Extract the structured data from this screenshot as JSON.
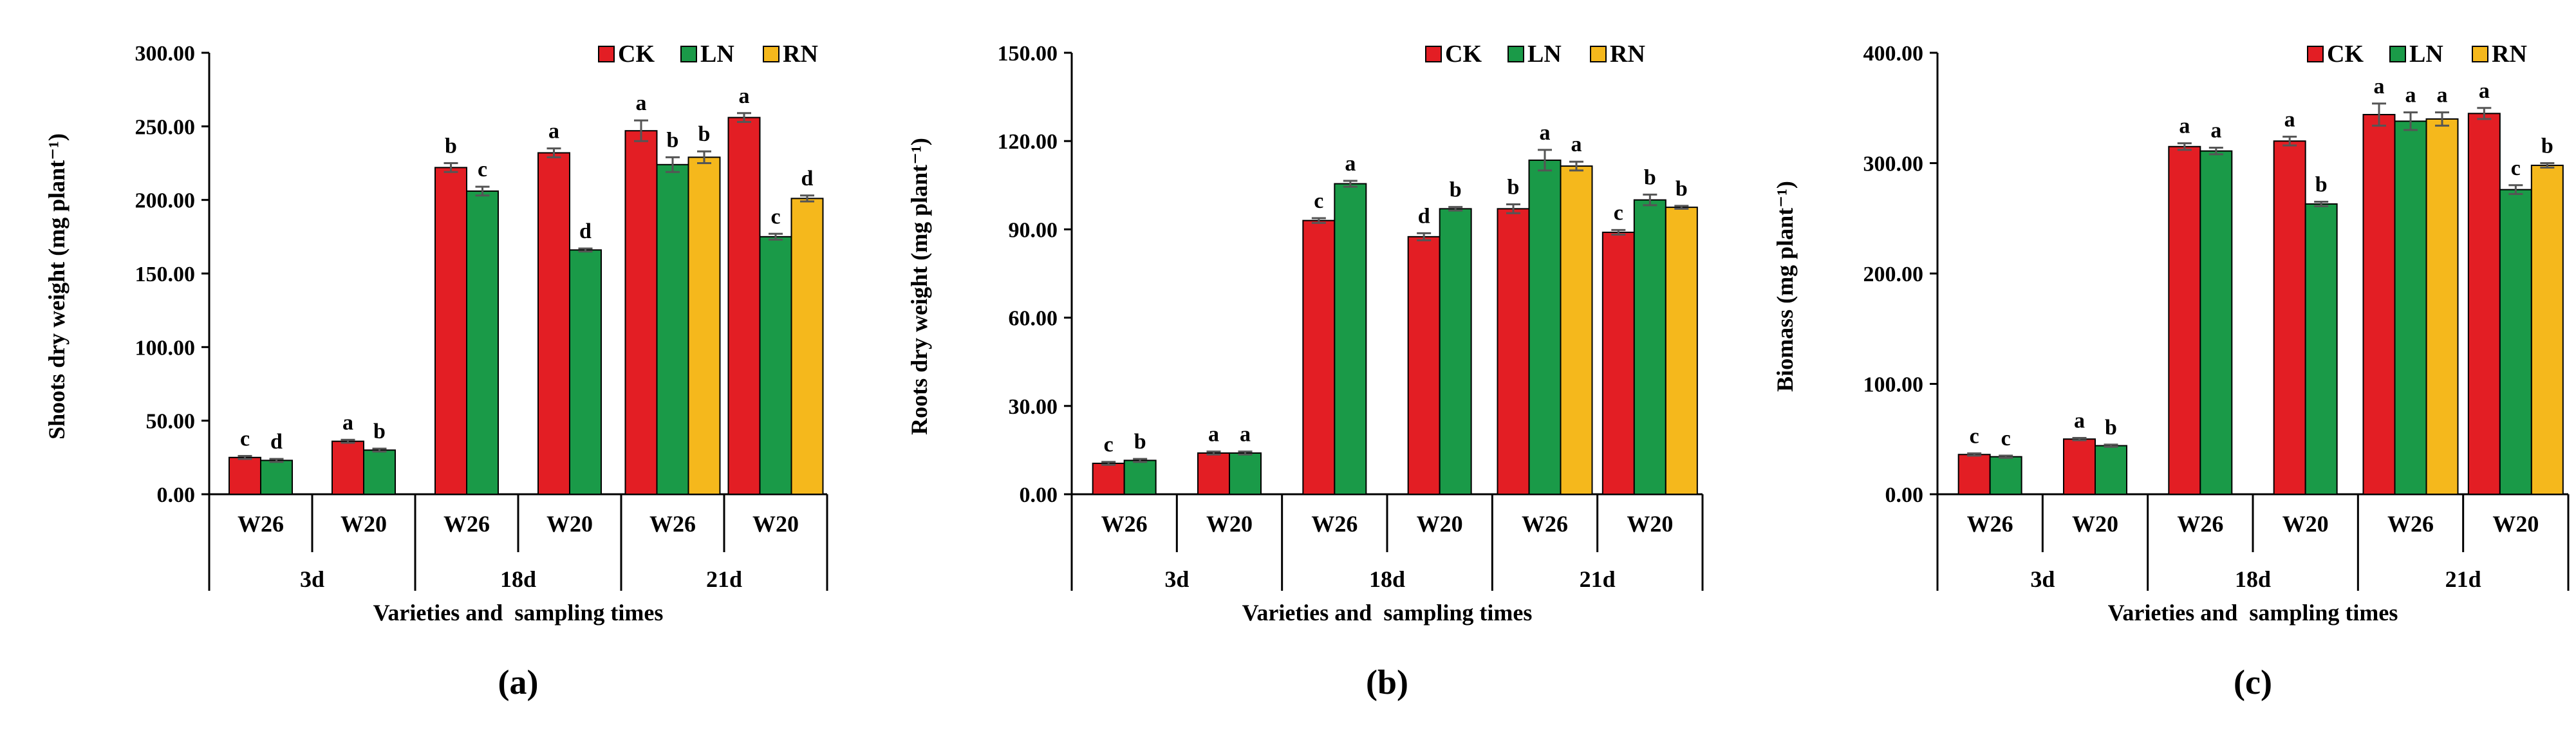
{
  "colors": {
    "CK": "#e31e24",
    "LN": "#1a9a48",
    "RN": "#f5b81c"
  },
  "chart_data": [
    {
      "type": "bar",
      "panel_label": "(a)",
      "ylabel": "Shoots dry weight (mg plant⁻¹)",
      "xlabel": "Varieties and  sampling times",
      "ylim": [
        0,
        300
      ],
      "yticks": [
        "0.00",
        "50.00",
        "100.00",
        "150.00",
        "200.00",
        "250.00",
        "300.00"
      ],
      "legend": [
        "CK",
        "LN",
        "RN"
      ],
      "groups": [
        {
          "time": "3d",
          "variety": "W26",
          "bars": [
            {
              "s": "CK",
              "v": 25,
              "e": 1,
              "l": "c"
            },
            {
              "s": "LN",
              "v": 23,
              "e": 1,
              "l": "d"
            }
          ]
        },
        {
          "time": "3d",
          "variety": "W20",
          "bars": [
            {
              "s": "CK",
              "v": 36,
              "e": 1,
              "l": "a"
            },
            {
              "s": "LN",
              "v": 30,
              "e": 1,
              "l": "b"
            }
          ]
        },
        {
          "time": "18d",
          "variety": "W26",
          "bars": [
            {
              "s": "CK",
              "v": 222,
              "e": 3,
              "l": "b"
            },
            {
              "s": "LN",
              "v": 206,
              "e": 3,
              "l": "c"
            }
          ]
        },
        {
          "time": "18d",
          "variety": "W20",
          "bars": [
            {
              "s": "CK",
              "v": 232,
              "e": 3,
              "l": "a"
            },
            {
              "s": "LN",
              "v": 166,
              "e": 1,
              "l": "d"
            }
          ]
        },
        {
          "time": "21d",
          "variety": "W26",
          "bars": [
            {
              "s": "CK",
              "v": 247,
              "e": 7,
              "l": "a"
            },
            {
              "s": "LN",
              "v": 224,
              "e": 5,
              "l": "b"
            },
            {
              "s": "RN",
              "v": 229,
              "e": 4,
              "l": "b"
            }
          ]
        },
        {
          "time": "21d",
          "variety": "W20",
          "bars": [
            {
              "s": "CK",
              "v": 256,
              "e": 3,
              "l": "a"
            },
            {
              "s": "LN",
              "v": 175,
              "e": 2,
              "l": "c"
            },
            {
              "s": "RN",
              "v": 201,
              "e": 2,
              "l": "d"
            }
          ]
        }
      ]
    },
    {
      "type": "bar",
      "panel_label": "(b)",
      "ylabel": "Roots dry weight (mg plant⁻¹)",
      "xlabel": "Varieties and  sampling times",
      "ylim": [
        0,
        150
      ],
      "yticks": [
        "0.00",
        "30.00",
        "60.00",
        "90.00",
        "120.00",
        "150.00"
      ],
      "legend": [
        "CK",
        "LN",
        "RN"
      ],
      "groups": [
        {
          "time": "3d",
          "variety": "W26",
          "bars": [
            {
              "s": "CK",
              "v": 10.5,
              "e": 0.5,
              "l": "c"
            },
            {
              "s": "LN",
              "v": 11.5,
              "e": 0.5,
              "l": "b"
            }
          ]
        },
        {
          "time": "3d",
          "variety": "W20",
          "bars": [
            {
              "s": "CK",
              "v": 14,
              "e": 0.5,
              "l": "a"
            },
            {
              "s": "LN",
              "v": 14,
              "e": 0.5,
              "l": "a"
            }
          ]
        },
        {
          "time": "18d",
          "variety": "W26",
          "bars": [
            {
              "s": "CK",
              "v": 93,
              "e": 0.8,
              "l": "c"
            },
            {
              "s": "LN",
              "v": 105.5,
              "e": 1,
              "l": "a"
            }
          ]
        },
        {
          "time": "18d",
          "variety": "W20",
          "bars": [
            {
              "s": "CK",
              "v": 87.5,
              "e": 1.2,
              "l": "d"
            },
            {
              "s": "LN",
              "v": 97,
              "e": 0.6,
              "l": "b"
            }
          ]
        },
        {
          "time": "21d",
          "variety": "W26",
          "bars": [
            {
              "s": "CK",
              "v": 97,
              "e": 1.5,
              "l": "b"
            },
            {
              "s": "LN",
              "v": 113.5,
              "e": 3.5,
              "l": "a"
            },
            {
              "s": "RN",
              "v": 111.5,
              "e": 1.5,
              "l": "a"
            }
          ]
        },
        {
          "time": "21d",
          "variety": "W20",
          "bars": [
            {
              "s": "CK",
              "v": 89,
              "e": 0.8,
              "l": "c"
            },
            {
              "s": "LN",
              "v": 100,
              "e": 1.8,
              "l": "b"
            },
            {
              "s": "RN",
              "v": 97.5,
              "e": 0.5,
              "l": "b"
            }
          ]
        }
      ]
    },
    {
      "type": "bar",
      "panel_label": "(c)",
      "ylabel": "Biomass (mg plant⁻¹)",
      "xlabel": "Varieties and  sampling times",
      "ylim": [
        0,
        400
      ],
      "yticks": [
        "0.00",
        "100.00",
        "200.00",
        "300.00",
        "400.00"
      ],
      "legend": [
        "CK",
        "LN",
        "RN"
      ],
      "groups": [
        {
          "time": "3d",
          "variety": "W26",
          "bars": [
            {
              "s": "CK",
              "v": 36,
              "e": 1,
              "l": "c"
            },
            {
              "s": "LN",
              "v": 34,
              "e": 1,
              "l": "c"
            }
          ]
        },
        {
          "time": "3d",
          "variety": "W20",
          "bars": [
            {
              "s": "CK",
              "v": 50,
              "e": 1,
              "l": "a"
            },
            {
              "s": "LN",
              "v": 44,
              "e": 1,
              "l": "b"
            }
          ]
        },
        {
          "time": "18d",
          "variety": "W26",
          "bars": [
            {
              "s": "CK",
              "v": 315,
              "e": 3,
              "l": "a"
            },
            {
              "s": "LN",
              "v": 311,
              "e": 3,
              "l": "a"
            }
          ]
        },
        {
          "time": "18d",
          "variety": "W20",
          "bars": [
            {
              "s": "CK",
              "v": 320,
              "e": 4,
              "l": "a"
            },
            {
              "s": "LN",
              "v": 263,
              "e": 2,
              "l": "b"
            }
          ]
        },
        {
          "time": "21d",
          "variety": "W26",
          "bars": [
            {
              "s": "CK",
              "v": 344,
              "e": 10,
              "l": "a"
            },
            {
              "s": "LN",
              "v": 338,
              "e": 8,
              "l": "a"
            },
            {
              "s": "RN",
              "v": 340,
              "e": 6,
              "l": "a"
            }
          ]
        },
        {
          "time": "21d",
          "variety": "W20",
          "bars": [
            {
              "s": "CK",
              "v": 345,
              "e": 5,
              "l": "a"
            },
            {
              "s": "LN",
              "v": 276,
              "e": 4,
              "l": "c"
            },
            {
              "s": "RN",
              "v": 298,
              "e": 2,
              "l": "b"
            }
          ]
        }
      ]
    }
  ]
}
